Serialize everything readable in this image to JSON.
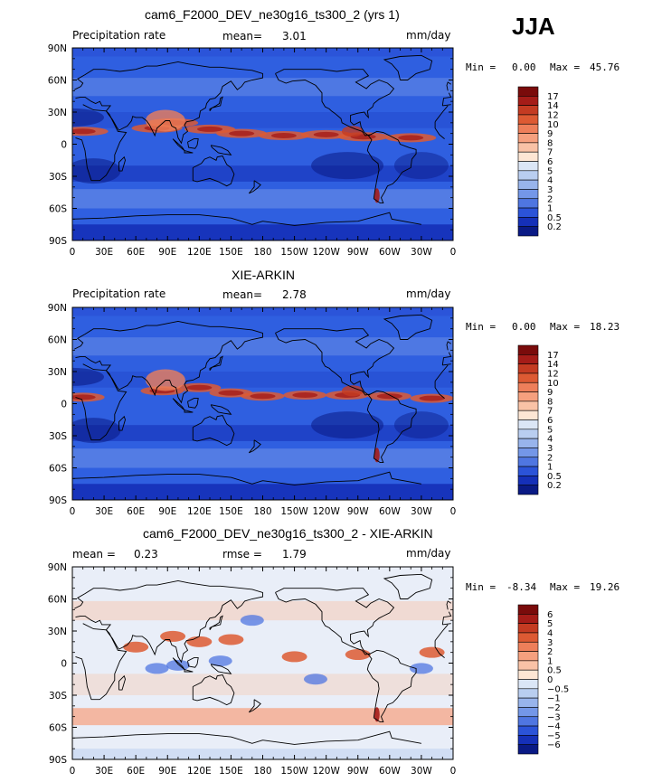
{
  "season": "JJA",
  "panels": [
    {
      "title": "cam6_F2000_DEV_ne30g16_ts300_2 (yrs 1)",
      "left_label": "Precipitation rate",
      "mid_label": "mean=",
      "mid_value": "3.01",
      "extra_label": "",
      "extra_value": "",
      "units": "mm/day",
      "min_label": "Min =",
      "min_value": "0.00",
      "max_label": "Max =",
      "max_value": "45.76",
      "colorbar_labels": [
        "17",
        "14",
        "12",
        "10",
        "9",
        "8",
        "7",
        "6",
        "5",
        "4",
        "3",
        "2",
        "1",
        "0.5",
        "0.2"
      ],
      "colorbar_colors": [
        "#7a0b0b",
        "#a51c18",
        "#c43b22",
        "#dd5a33",
        "#ee7f5a",
        "#f6a07e",
        "#f9c2a6",
        "#fde6d4",
        "#dbe6f6",
        "#b9cef0",
        "#98b4ec",
        "#7497e8",
        "#4f76e1",
        "#2b53d8",
        "#1530b8",
        "#0a1a85"
      ],
      "bottom_title": "XIE-ARKIN"
    },
    {
      "title": "XIE-ARKIN",
      "left_label": "Precipitation rate",
      "mid_label": "mean=",
      "mid_value": "2.78",
      "extra_label": "",
      "extra_value": "",
      "units": "mm/day",
      "min_label": "Min =",
      "min_value": "0.00",
      "max_label": "Max =",
      "max_value": "18.23",
      "colorbar_labels": [
        "17",
        "14",
        "12",
        "10",
        "9",
        "8",
        "7",
        "6",
        "5",
        "4",
        "3",
        "2",
        "1",
        "0.5",
        "0.2"
      ],
      "colorbar_colors": [
        "#7a0b0b",
        "#a51c18",
        "#c43b22",
        "#dd5a33",
        "#ee7f5a",
        "#f6a07e",
        "#f9c2a6",
        "#fde6d4",
        "#dbe6f6",
        "#b9cef0",
        "#98b4ec",
        "#7497e8",
        "#4f76e1",
        "#2b53d8",
        "#1530b8",
        "#0a1a85"
      ]
    },
    {
      "title": "cam6_F2000_DEV_ne30g16_ts300_2 - XIE-ARKIN",
      "left_label": "mean =",
      "left_value": "0.23",
      "mid_label": "rmse =",
      "mid_value": "1.79",
      "units": "mm/day",
      "min_label": "Min =",
      "min_value": "-8.34",
      "max_label": "Max =",
      "max_value": "19.26",
      "colorbar_labels": [
        "6",
        "5",
        "4",
        "3",
        "2",
        "1",
        "0.5",
        "0",
        "−0.5",
        "−1",
        "−2",
        "−3",
        "−4",
        "−5",
        "−6"
      ],
      "colorbar_colors": [
        "#7a0b0b",
        "#a51c18",
        "#c43b22",
        "#dd5a33",
        "#ee7f5a",
        "#f6a07e",
        "#f9c2a6",
        "#fde6d4",
        "#dbe6f6",
        "#b9cef0",
        "#98b4ec",
        "#7497e8",
        "#4f76e1",
        "#2b53d8",
        "#1530b8",
        "#0a1a85"
      ]
    }
  ],
  "lat_ticks": [
    "90N",
    "60N",
    "30N",
    "0",
    "30S",
    "60S",
    "90S"
  ],
  "lon_ticks": [
    "0",
    "30E",
    "60E",
    "90E",
    "120E",
    "150E",
    "180",
    "150W",
    "120W",
    "90W",
    "60W",
    "30W",
    "0"
  ],
  "colors": {
    "precip_base": "#2f5fe0",
    "precip_dry": "#0d2aa8",
    "precip_wet": "#e8502c",
    "diff_base": "#e9eef8",
    "coastline": "#000000"
  }
}
